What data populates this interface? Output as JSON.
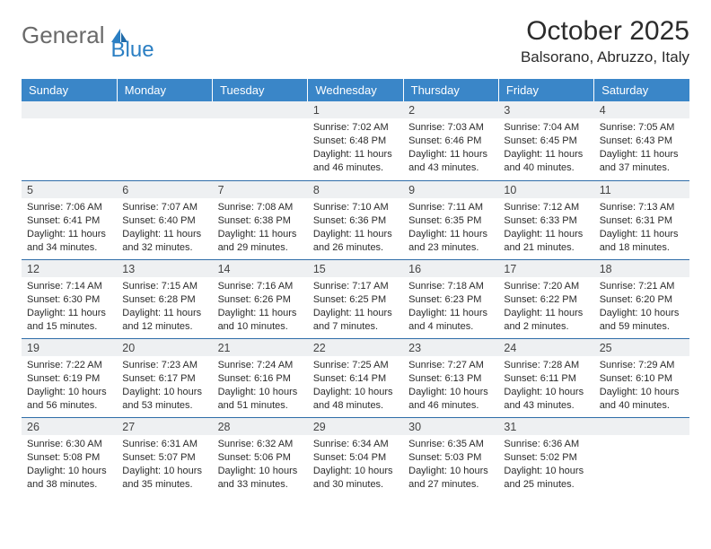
{
  "brand": {
    "part1": "General",
    "part2": "Blue"
  },
  "title": "October 2025",
  "subtitle": "Balsorano, Abruzzo, Italy",
  "colors": {
    "header_bg": "#3a86c8",
    "header_text": "#ffffff",
    "daynum_bg": "#eef0f2",
    "rule": "#2f6da8",
    "text": "#2b2b2b",
    "brand_blue": "#2b7fc3",
    "brand_grey": "#6a6a6a"
  },
  "weekdays": [
    "Sunday",
    "Monday",
    "Tuesday",
    "Wednesday",
    "Thursday",
    "Friday",
    "Saturday"
  ],
  "weeks": [
    [
      null,
      null,
      null,
      {
        "n": "1",
        "rise": "7:02 AM",
        "set": "6:48 PM",
        "day": "11 hours and 46 minutes."
      },
      {
        "n": "2",
        "rise": "7:03 AM",
        "set": "6:46 PM",
        "day": "11 hours and 43 minutes."
      },
      {
        "n": "3",
        "rise": "7:04 AM",
        "set": "6:45 PM",
        "day": "11 hours and 40 minutes."
      },
      {
        "n": "4",
        "rise": "7:05 AM",
        "set": "6:43 PM",
        "day": "11 hours and 37 minutes."
      }
    ],
    [
      {
        "n": "5",
        "rise": "7:06 AM",
        "set": "6:41 PM",
        "day": "11 hours and 34 minutes."
      },
      {
        "n": "6",
        "rise": "7:07 AM",
        "set": "6:40 PM",
        "day": "11 hours and 32 minutes."
      },
      {
        "n": "7",
        "rise": "7:08 AM",
        "set": "6:38 PM",
        "day": "11 hours and 29 minutes."
      },
      {
        "n": "8",
        "rise": "7:10 AM",
        "set": "6:36 PM",
        "day": "11 hours and 26 minutes."
      },
      {
        "n": "9",
        "rise": "7:11 AM",
        "set": "6:35 PM",
        "day": "11 hours and 23 minutes."
      },
      {
        "n": "10",
        "rise": "7:12 AM",
        "set": "6:33 PM",
        "day": "11 hours and 21 minutes."
      },
      {
        "n": "11",
        "rise": "7:13 AM",
        "set": "6:31 PM",
        "day": "11 hours and 18 minutes."
      }
    ],
    [
      {
        "n": "12",
        "rise": "7:14 AM",
        "set": "6:30 PM",
        "day": "11 hours and 15 minutes."
      },
      {
        "n": "13",
        "rise": "7:15 AM",
        "set": "6:28 PM",
        "day": "11 hours and 12 minutes."
      },
      {
        "n": "14",
        "rise": "7:16 AM",
        "set": "6:26 PM",
        "day": "11 hours and 10 minutes."
      },
      {
        "n": "15",
        "rise": "7:17 AM",
        "set": "6:25 PM",
        "day": "11 hours and 7 minutes."
      },
      {
        "n": "16",
        "rise": "7:18 AM",
        "set": "6:23 PM",
        "day": "11 hours and 4 minutes."
      },
      {
        "n": "17",
        "rise": "7:20 AM",
        "set": "6:22 PM",
        "day": "11 hours and 2 minutes."
      },
      {
        "n": "18",
        "rise": "7:21 AM",
        "set": "6:20 PM",
        "day": "10 hours and 59 minutes."
      }
    ],
    [
      {
        "n": "19",
        "rise": "7:22 AM",
        "set": "6:19 PM",
        "day": "10 hours and 56 minutes."
      },
      {
        "n": "20",
        "rise": "7:23 AM",
        "set": "6:17 PM",
        "day": "10 hours and 53 minutes."
      },
      {
        "n": "21",
        "rise": "7:24 AM",
        "set": "6:16 PM",
        "day": "10 hours and 51 minutes."
      },
      {
        "n": "22",
        "rise": "7:25 AM",
        "set": "6:14 PM",
        "day": "10 hours and 48 minutes."
      },
      {
        "n": "23",
        "rise": "7:27 AM",
        "set": "6:13 PM",
        "day": "10 hours and 46 minutes."
      },
      {
        "n": "24",
        "rise": "7:28 AM",
        "set": "6:11 PM",
        "day": "10 hours and 43 minutes."
      },
      {
        "n": "25",
        "rise": "7:29 AM",
        "set": "6:10 PM",
        "day": "10 hours and 40 minutes."
      }
    ],
    [
      {
        "n": "26",
        "rise": "6:30 AM",
        "set": "5:08 PM",
        "day": "10 hours and 38 minutes."
      },
      {
        "n": "27",
        "rise": "6:31 AM",
        "set": "5:07 PM",
        "day": "10 hours and 35 minutes."
      },
      {
        "n": "28",
        "rise": "6:32 AM",
        "set": "5:06 PM",
        "day": "10 hours and 33 minutes."
      },
      {
        "n": "29",
        "rise": "6:34 AM",
        "set": "5:04 PM",
        "day": "10 hours and 30 minutes."
      },
      {
        "n": "30",
        "rise": "6:35 AM",
        "set": "5:03 PM",
        "day": "10 hours and 27 minutes."
      },
      {
        "n": "31",
        "rise": "6:36 AM",
        "set": "5:02 PM",
        "day": "10 hours and 25 minutes."
      },
      null
    ]
  ],
  "labels": {
    "sunrise": "Sunrise:",
    "sunset": "Sunset:",
    "daylight": "Daylight:"
  }
}
